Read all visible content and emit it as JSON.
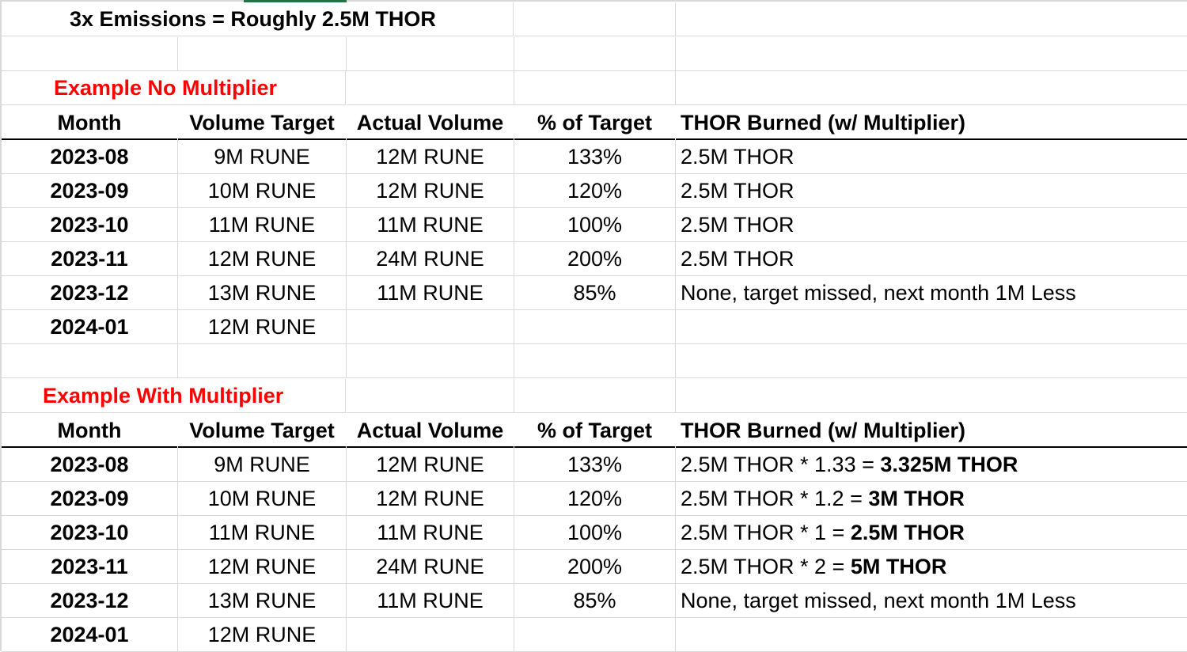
{
  "title": "3x Emissions = Roughly 2.5M THOR",
  "sections": [
    {
      "heading": "Example No Multiplier",
      "columns": [
        "Month",
        "Volume Target",
        "Actual Volume",
        "% of Target",
        "THOR Burned (w/ Multiplier)"
      ],
      "rows": [
        {
          "month": "2023-08",
          "target": "9M RUNE",
          "actual": "12M RUNE",
          "pct": "133%",
          "burn": "2.5M THOR",
          "burn_bold": ""
        },
        {
          "month": "2023-09",
          "target": "10M RUNE",
          "actual": "12M RUNE",
          "pct": "120%",
          "burn": "2.5M THOR",
          "burn_bold": ""
        },
        {
          "month": "2023-10",
          "target": "11M RUNE",
          "actual": "11M RUNE",
          "pct": "100%",
          "burn": "2.5M THOR",
          "burn_bold": ""
        },
        {
          "month": "2023-11",
          "target": "12M RUNE",
          "actual": "24M RUNE",
          "pct": "200%",
          "burn": "2.5M THOR",
          "burn_bold": ""
        },
        {
          "month": "2023-12",
          "target": "13M RUNE",
          "actual": "11M RUNE",
          "pct": "85%",
          "burn": "None, target missed, next month 1M Less",
          "burn_bold": ""
        },
        {
          "month": "2024-01",
          "target": "12M RUNE",
          "actual": "",
          "pct": "",
          "burn": "",
          "burn_bold": ""
        }
      ]
    },
    {
      "heading": "Example With Multiplier",
      "columns": [
        "Month",
        "Volume Target",
        "Actual Volume",
        "% of Target",
        "THOR Burned (w/ Multiplier)"
      ],
      "rows": [
        {
          "month": "2023-08",
          "target": "9M RUNE",
          "actual": "12M RUNE",
          "pct": "133%",
          "burn": "2.5M THOR * 1.33 = ",
          "burn_bold": "3.325M THOR"
        },
        {
          "month": "2023-09",
          "target": "10M RUNE",
          "actual": "12M RUNE",
          "pct": "120%",
          "burn": "2.5M THOR * 1.2 = ",
          "burn_bold": "3M THOR"
        },
        {
          "month": "2023-10",
          "target": "11M RUNE",
          "actual": "11M RUNE",
          "pct": "100%",
          "burn": "2.5M THOR * 1 = ",
          "burn_bold": "2.5M THOR"
        },
        {
          "month": "2023-11",
          "target": "12M RUNE",
          "actual": "24M RUNE",
          "pct": "200%",
          "burn": "2.5M THOR * 2 = ",
          "burn_bold": "5M THOR"
        },
        {
          "month": "2023-12",
          "target": "13M RUNE",
          "actual": "11M RUNE",
          "pct": "85%",
          "burn": "None, target missed, next month 1M Less",
          "burn_bold": ""
        },
        {
          "month": "2024-01",
          "target": "12M RUNE",
          "actual": "",
          "pct": "",
          "burn": "",
          "burn_bold": ""
        }
      ]
    }
  ],
  "colors": {
    "heading": "#ff0000",
    "gridline": "#d9d9d9",
    "header_rule": "#000000",
    "active_tab": "#217346"
  }
}
